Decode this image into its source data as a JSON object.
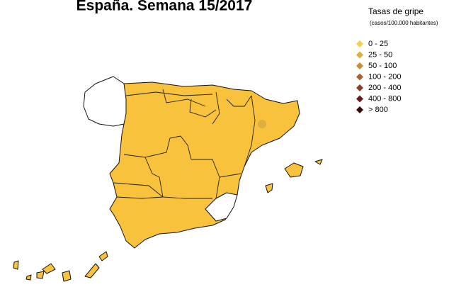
{
  "title": "España. Semana 15/2017",
  "legend": {
    "title": "Tasas de gripe",
    "subtitle": "(casos/100.000 habitantes)",
    "items": [
      {
        "label": "0 - 25",
        "color": "#f6d04d"
      },
      {
        "label": "25 - 50",
        "color": "#deae3e"
      },
      {
        "label": "50 - 100",
        "color": "#c98c37"
      },
      {
        "label": "100 - 200",
        "color": "#a9642e"
      },
      {
        "label": "200 - 400",
        "color": "#8c3c2a"
      },
      {
        "label": "400 - 800",
        "color": "#6a1820"
      },
      {
        "label": "> 800",
        "color": "#3a0a0e"
      }
    ]
  }
}
